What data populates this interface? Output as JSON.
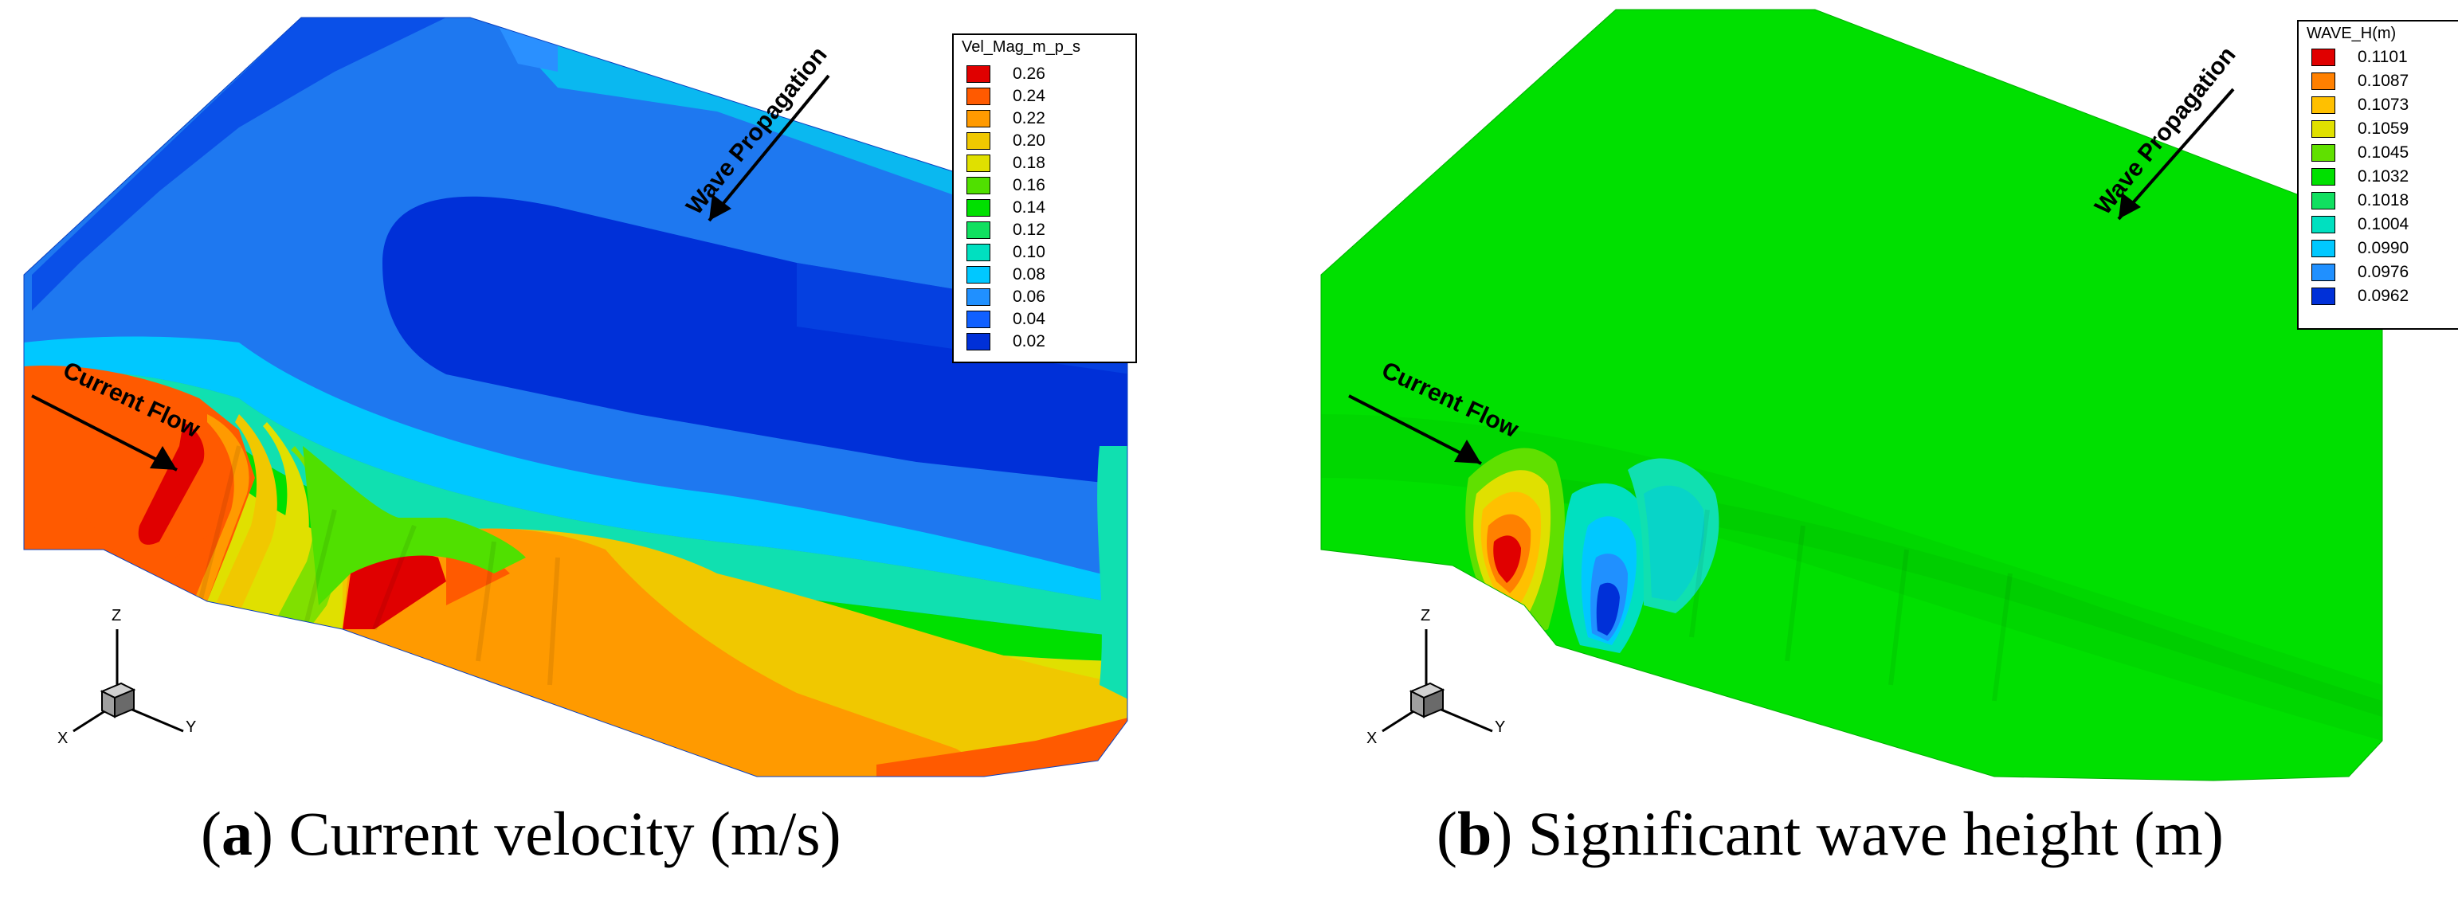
{
  "panels": [
    {
      "caption_letter": "a",
      "caption_text": "Current velocity (m/s)",
      "legend_title": "Vel_Mag_m_p_s",
      "legend_values": [
        "0.26",
        "0.24",
        "0.22",
        "0.20",
        "0.18",
        "0.16",
        "0.14",
        "0.12",
        "0.10",
        "0.08",
        "0.06",
        "0.04",
        "0.02"
      ],
      "legend_colors": [
        "#e00000",
        "#ff5a00",
        "#ff9a00",
        "#f0c800",
        "#e0e000",
        "#50e000",
        "#00e000",
        "#10e060",
        "#00e0c0",
        "#00c8ff",
        "#2090ff",
        "#1060ff",
        "#0030d8"
      ],
      "annotation_current": "Current Flow",
      "annotation_wave": "Wave Propagation"
    },
    {
      "caption_letter": "b",
      "caption_text": "Significant wave height (m)",
      "legend_title": "WAVE_H(m)",
      "legend_values": [
        "0.1101",
        "0.1087",
        "0.1073",
        "0.1059",
        "0.1045",
        "0.1032",
        "0.1018",
        "0.1004",
        "0.0990",
        "0.0976",
        "0.0962"
      ],
      "legend_colors": [
        "#e00000",
        "#ff8000",
        "#ffc000",
        "#e0e000",
        "#60e000",
        "#00e000",
        "#10e060",
        "#00e0c0",
        "#00c8ff",
        "#2090ff",
        "#0030d8"
      ],
      "annotation_current": "Current Flow",
      "annotation_wave": "Wave Propagation"
    }
  ],
  "axes": {
    "x": "X",
    "y": "Y",
    "z": "Z"
  },
  "colors": {
    "background": "#ffffff",
    "deep_blue": "#0a50e8",
    "mid_blue": "#1e78f0",
    "green": "#00e000"
  }
}
